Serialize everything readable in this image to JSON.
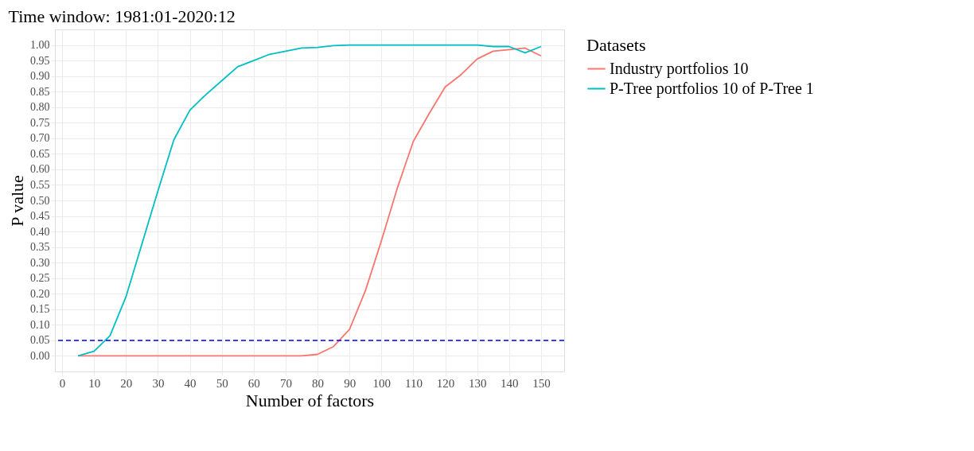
{
  "chart_data": {
    "type": "line",
    "title": "Time window: 1981:01-2020:12",
    "xlabel": "Number of factors",
    "ylabel": "P value",
    "legend_title": "Datasets",
    "x": [
      5,
      10,
      15,
      20,
      25,
      30,
      35,
      40,
      45,
      50,
      55,
      60,
      65,
      70,
      75,
      80,
      85,
      90,
      95,
      100,
      105,
      110,
      115,
      120,
      125,
      130,
      135,
      140,
      145,
      150
    ],
    "series": [
      {
        "name": "Industry portfolios 10",
        "color": "#f8766d",
        "values": [
          0,
          0,
          0,
          0,
          0,
          0,
          0,
          0,
          0,
          0,
          0,
          0,
          0,
          0,
          0,
          0.005,
          0.03,
          0.085,
          0.21,
          0.37,
          0.54,
          0.69,
          0.78,
          0.865,
          0.905,
          0.955,
          0.98,
          0.985,
          0.99,
          0.965
        ]
      },
      {
        "name": "P-Tree portfolios 10 of P-Tree 1",
        "color": "#00bfc4",
        "values": [
          0,
          0.015,
          0.065,
          0.19,
          0.36,
          0.53,
          0.695,
          0.79,
          0.84,
          0.885,
          0.93,
          0.95,
          0.97,
          0.98,
          0.99,
          0.992,
          0.998,
          1,
          1,
          1,
          1,
          1,
          1,
          1,
          1,
          1,
          0.995,
          0.995,
          0.975,
          0.995
        ]
      }
    ],
    "xlim": [
      -2.25,
      157.25
    ],
    "xticks": [
      0,
      10,
      20,
      30,
      40,
      50,
      60,
      70,
      80,
      90,
      100,
      110,
      120,
      130,
      140,
      150
    ],
    "ylim": [
      -0.05,
      1.05
    ],
    "yticks": [
      {
        "value": 0,
        "label": "0.00"
      },
      {
        "value": 0.05,
        "label": "0.05"
      },
      {
        "value": 0.1,
        "label": "0.10"
      },
      {
        "value": 0.15,
        "label": "0.15"
      },
      {
        "value": 0.2,
        "label": "0.20"
      },
      {
        "value": 0.25,
        "label": "0.25"
      },
      {
        "value": 0.3,
        "label": "0.30"
      },
      {
        "value": 0.35,
        "label": "0.35"
      },
      {
        "value": 0.4,
        "label": "0.40"
      },
      {
        "value": 0.45,
        "label": "0.45"
      },
      {
        "value": 0.5,
        "label": "0.50"
      },
      {
        "value": 0.55,
        "label": "0.55"
      },
      {
        "value": 0.6,
        "label": "0.60"
      },
      {
        "value": 0.65,
        "label": "0.65"
      },
      {
        "value": 0.7,
        "label": "0.70"
      },
      {
        "value": 0.75,
        "label": "0.75"
      },
      {
        "value": 0.8,
        "label": "0.80"
      },
      {
        "value": 0.85,
        "label": "0.85"
      },
      {
        "value": 0.9,
        "label": "0.90"
      },
      {
        "value": 0.95,
        "label": "0.95"
      },
      {
        "value": 1,
        "label": "1.00"
      }
    ],
    "ref_lines": [
      {
        "axis": "y",
        "value": 0.05,
        "color": "#0000ff",
        "line_style": "dashed"
      }
    ],
    "grid": true,
    "legend": "right",
    "marker": "none",
    "line_style": "solid"
  }
}
